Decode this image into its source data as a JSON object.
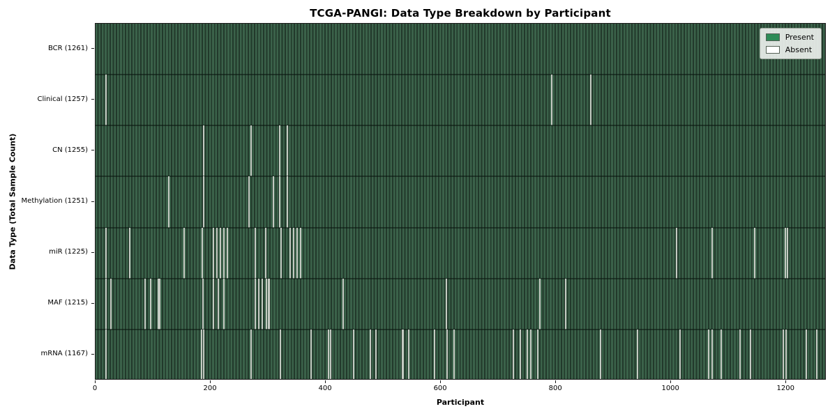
{
  "chart_data": {
    "type": "heatmap",
    "subtype": "presence-absence-matrix",
    "title": "TCGA-PANGI: Data Type Breakdown by Participant",
    "xlabel": "Participant",
    "ylabel": "Data Type (Total Sample Count)",
    "x_ticks": [
      0,
      200,
      400,
      600,
      800,
      1000,
      1200
    ],
    "xlim": [
      0,
      1270
    ],
    "grid": false,
    "legend_position": "upper right",
    "legend": [
      {
        "label": "Present",
        "color": "#2e8b57"
      },
      {
        "label": "Absent",
        "color": "#ffffff"
      }
    ],
    "rows": [
      {
        "label": "BCR (1261)",
        "data_type": "BCR",
        "total_sample_count": 1261,
        "absent_x": []
      },
      {
        "label": "Clinical (1257)",
        "data_type": "Clinical",
        "total_sample_count": 1257,
        "absent_x": [
          18,
          792,
          860
        ]
      },
      {
        "label": "CN (1255)",
        "data_type": "CN",
        "total_sample_count": 1255,
        "absent_x": [
          188,
          270,
          320,
          333
        ]
      },
      {
        "label": "Methylation (1251)",
        "data_type": "Methylation",
        "total_sample_count": 1251,
        "absent_x": [
          127,
          188,
          267,
          309,
          320,
          333
        ]
      },
      {
        "label": "miR (1225)",
        "data_type": "miR",
        "total_sample_count": 1225,
        "absent_x": [
          18,
          59,
          154,
          185,
          205,
          211,
          217,
          223,
          229,
          278,
          296,
          322,
          338,
          344,
          350,
          356,
          1010,
          1071,
          1145,
          1198,
          1202
        ]
      },
      {
        "label": "MAF (1215)",
        "data_type": "MAF",
        "total_sample_count": 1215,
        "absent_x": [
          18,
          27,
          86,
          96,
          109,
          111,
          187,
          205,
          213,
          223,
          278,
          284,
          290,
          297,
          300,
          302,
          430,
          610,
          772,
          817
        ]
      },
      {
        "label": "mRNA (1167)",
        "data_type": "mRNA",
        "total_sample_count": 1167,
        "absent_x": [
          18,
          184,
          188,
          270,
          321,
          374,
          405,
          408,
          448,
          477,
          487,
          533,
          535,
          544,
          589,
          611,
          623,
          726,
          738,
          750,
          756,
          768,
          877,
          941,
          1016,
          1065,
          1071,
          1087,
          1120,
          1138,
          1195,
          1200,
          1235,
          1253
        ]
      }
    ]
  }
}
